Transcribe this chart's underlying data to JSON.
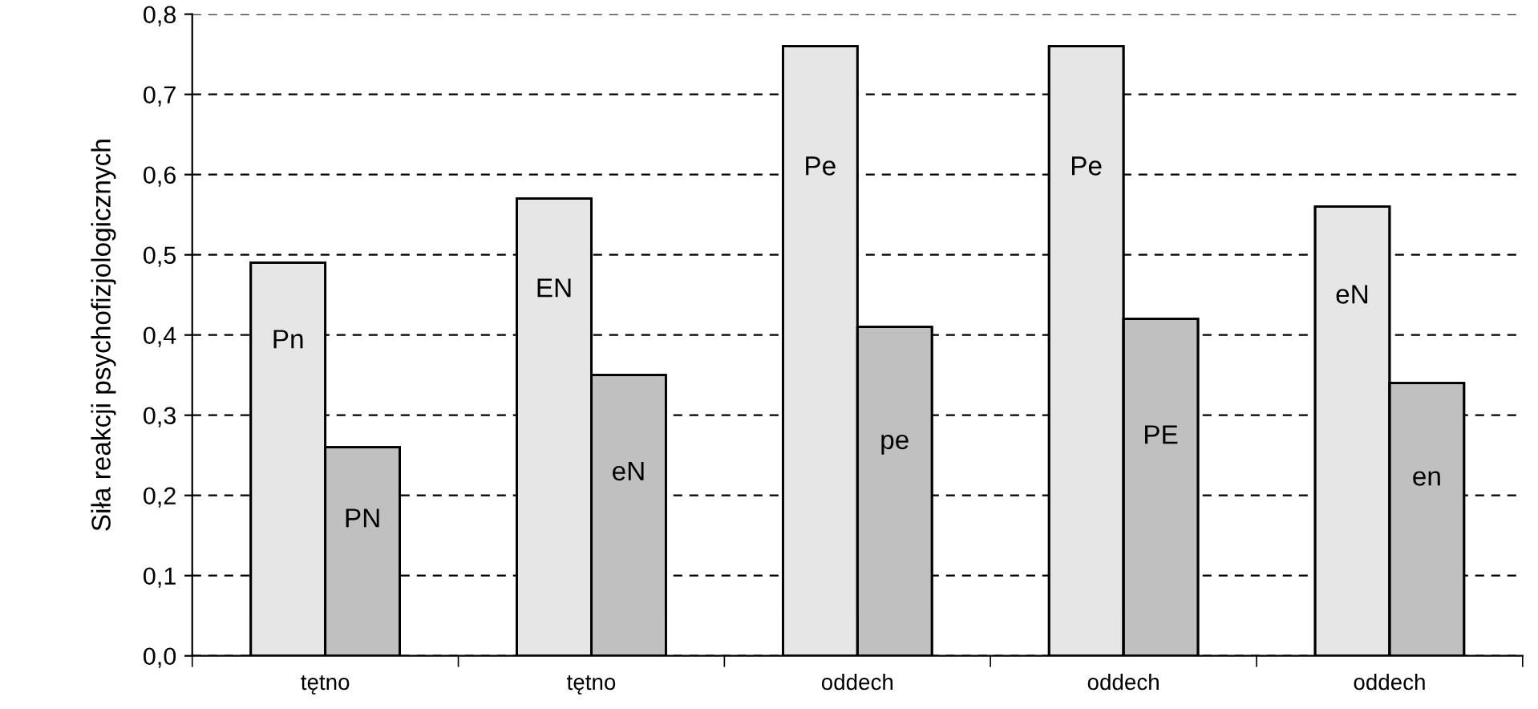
{
  "chart_data": {
    "type": "bar",
    "ylabel": "Siła reakcji psychofizjologicznych",
    "categories": [
      "tętno",
      "tętno",
      "oddech",
      "oddech",
      "oddech"
    ],
    "series": [
      {
        "color": "#e6e6e6",
        "values": [
          0.49,
          0.57,
          0.76,
          0.76,
          0.56
        ],
        "value_labels": [
          "Pn",
          "EN",
          "Pe",
          "Pe",
          "eN"
        ]
      },
      {
        "color": "#c0c0c0",
        "values": [
          0.26,
          0.35,
          0.41,
          0.42,
          0.34
        ],
        "value_labels": [
          "PN",
          "eN",
          "pe",
          "PE",
          "en"
        ]
      }
    ],
    "ylim": [
      0,
      0.8
    ],
    "yticks": [
      {
        "value": 0,
        "label": "0,0"
      },
      {
        "value": 0.1,
        "label": "0,1"
      },
      {
        "value": 0.2,
        "label": "0,2"
      },
      {
        "value": 0.3,
        "label": "0,3"
      },
      {
        "value": 0.4,
        "label": "0,4"
      },
      {
        "value": 0.5,
        "label": "0,5"
      },
      {
        "value": 0.6,
        "label": "0,6"
      },
      {
        "value": 0.7,
        "label": "0,7"
      },
      {
        "value": 0.8,
        "label": "0,8"
      }
    ],
    "grid": "y"
  }
}
